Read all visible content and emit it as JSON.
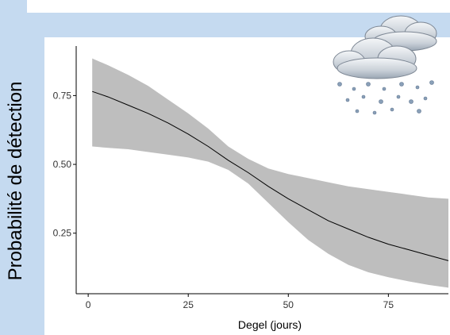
{
  "chart_data": {
    "type": "line",
    "title": "",
    "xlabel": "Degel (jours)",
    "ylabel": "Probabilité de détection",
    "xlim": [
      -3,
      90
    ],
    "ylim": [
      0.03,
      0.93
    ],
    "x_ticks": [
      0,
      25,
      50,
      75
    ],
    "x_tick_labels": [
      "0",
      "25",
      "50",
      "75"
    ],
    "y_ticks": [
      0.25,
      0.5,
      0.75
    ],
    "y_tick_labels": [
      "0.25",
      "0.50",
      "0.75"
    ],
    "grid": false,
    "legend": "none",
    "series": [
      {
        "x": [
          1,
          5,
          10,
          15,
          20,
          25,
          30,
          35,
          40,
          45,
          50,
          55,
          60,
          65,
          70,
          75,
          80,
          85,
          90
        ],
        "y": [
          0.765,
          0.745,
          0.715,
          0.685,
          0.65,
          0.61,
          0.565,
          0.515,
          0.47,
          0.42,
          0.375,
          0.335,
          0.295,
          0.265,
          0.235,
          0.21,
          0.19,
          0.17,
          0.15
        ],
        "lower": [
          0.565,
          0.56,
          0.555,
          0.545,
          0.535,
          0.525,
          0.51,
          0.48,
          0.43,
          0.36,
          0.29,
          0.225,
          0.175,
          0.135,
          0.108,
          0.09,
          0.075,
          0.062,
          0.052
        ],
        "upper": [
          0.885,
          0.86,
          0.825,
          0.785,
          0.735,
          0.685,
          0.63,
          0.565,
          0.52,
          0.485,
          0.465,
          0.45,
          0.435,
          0.42,
          0.41,
          0.4,
          0.39,
          0.38,
          0.375
        ]
      }
    ]
  },
  "colors": {
    "band": "#bebebe",
    "line": "#000000",
    "background_panel": "#c5daf0"
  },
  "decor": {
    "icon": "snow-cloud-icon"
  }
}
